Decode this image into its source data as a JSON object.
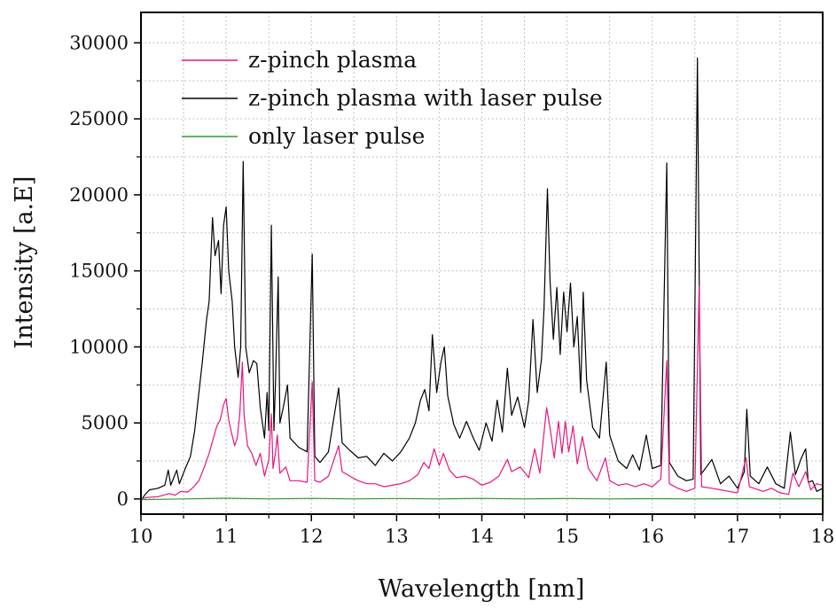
{
  "chart_data": {
    "type": "line",
    "title": "",
    "xlabel": "Wavelength [nm]",
    "ylabel": "Intensity [a.E]",
    "xlim": [
      10,
      18
    ],
    "ylim": [
      -1000,
      32000
    ],
    "x_ticks": [
      10,
      11,
      12,
      13,
      14,
      15,
      16,
      17,
      18
    ],
    "y_ticks": [
      0,
      5000,
      10000,
      15000,
      20000,
      25000,
      30000
    ],
    "grid": true,
    "legend_position": "top-left",
    "series": [
      {
        "name": "z-pinch plasma",
        "color": "#e8157f",
        "points": [
          [
            10.0,
            0
          ],
          [
            10.08,
            100
          ],
          [
            10.2,
            150
          ],
          [
            10.33,
            350
          ],
          [
            10.4,
            250
          ],
          [
            10.47,
            500
          ],
          [
            10.55,
            450
          ],
          [
            10.62,
            800
          ],
          [
            10.68,
            1200
          ],
          [
            10.75,
            2200
          ],
          [
            10.8,
            3000
          ],
          [
            10.85,
            4000
          ],
          [
            10.89,
            4800
          ],
          [
            10.93,
            5200
          ],
          [
            10.97,
            6200
          ],
          [
            11.0,
            6600
          ],
          [
            11.03,
            5200
          ],
          [
            11.06,
            4400
          ],
          [
            11.1,
            3500
          ],
          [
            11.13,
            4000
          ],
          [
            11.16,
            5600
          ],
          [
            11.19,
            9000
          ],
          [
            11.21,
            5500
          ],
          [
            11.25,
            3500
          ],
          [
            11.3,
            3000
          ],
          [
            11.35,
            2200
          ],
          [
            11.4,
            3000
          ],
          [
            11.45,
            1500
          ],
          [
            11.5,
            2600
          ],
          [
            11.53,
            5600
          ],
          [
            11.55,
            2000
          ],
          [
            11.58,
            3100
          ],
          [
            11.6,
            4200
          ],
          [
            11.63,
            1700
          ],
          [
            11.7,
            2100
          ],
          [
            11.75,
            1200
          ],
          [
            11.85,
            1200
          ],
          [
            11.95,
            1100
          ],
          [
            12.01,
            7700
          ],
          [
            12.04,
            1200
          ],
          [
            12.1,
            1100
          ],
          [
            12.2,
            1500
          ],
          [
            12.32,
            3500
          ],
          [
            12.36,
            1800
          ],
          [
            12.45,
            1500
          ],
          [
            12.55,
            1200
          ],
          [
            12.65,
            1000
          ],
          [
            12.75,
            1000
          ],
          [
            12.85,
            800
          ],
          [
            12.95,
            900
          ],
          [
            13.05,
            1000
          ],
          [
            13.15,
            1200
          ],
          [
            13.25,
            1600
          ],
          [
            13.32,
            2400
          ],
          [
            13.38,
            2000
          ],
          [
            13.44,
            3300
          ],
          [
            13.5,
            2200
          ],
          [
            13.55,
            3000
          ],
          [
            13.62,
            1900
          ],
          [
            13.7,
            1400
          ],
          [
            13.8,
            1500
          ],
          [
            13.9,
            1300
          ],
          [
            14.0,
            900
          ],
          [
            14.1,
            1100
          ],
          [
            14.2,
            1500
          ],
          [
            14.3,
            2600
          ],
          [
            14.35,
            1800
          ],
          [
            14.45,
            2100
          ],
          [
            14.55,
            1400
          ],
          [
            14.62,
            3300
          ],
          [
            14.68,
            1700
          ],
          [
            14.76,
            6000
          ],
          [
            14.8,
            4700
          ],
          [
            14.85,
            2700
          ],
          [
            14.9,
            5100
          ],
          [
            14.94,
            3000
          ],
          [
            14.98,
            5100
          ],
          [
            15.02,
            3100
          ],
          [
            15.07,
            4800
          ],
          [
            15.12,
            2300
          ],
          [
            15.18,
            4100
          ],
          [
            15.25,
            2000
          ],
          [
            15.35,
            1200
          ],
          [
            15.45,
            2700
          ],
          [
            15.5,
            1200
          ],
          [
            15.6,
            900
          ],
          [
            15.7,
            1000
          ],
          [
            15.8,
            800
          ],
          [
            15.9,
            1000
          ],
          [
            16.0,
            800
          ],
          [
            16.1,
            1300
          ],
          [
            16.17,
            9100
          ],
          [
            16.2,
            1000
          ],
          [
            16.3,
            700
          ],
          [
            16.4,
            500
          ],
          [
            16.5,
            700
          ],
          [
            16.55,
            14000
          ],
          [
            16.58,
            800
          ],
          [
            16.7,
            700
          ],
          [
            16.8,
            600
          ],
          [
            16.9,
            500
          ],
          [
            17.0,
            400
          ],
          [
            17.1,
            2700
          ],
          [
            17.14,
            800
          ],
          [
            17.3,
            500
          ],
          [
            17.4,
            700
          ],
          [
            17.5,
            400
          ],
          [
            17.6,
            300
          ],
          [
            17.65,
            1700
          ],
          [
            17.72,
            800
          ],
          [
            17.8,
            1800
          ],
          [
            17.86,
            600
          ],
          [
            17.93,
            1000
          ],
          [
            18.0,
            900
          ]
        ]
      },
      {
        "name": "z-pinch plasma with laser pulse",
        "color": "#000000",
        "points": [
          [
            10.0,
            -100
          ],
          [
            10.05,
            300
          ],
          [
            10.1,
            600
          ],
          [
            10.2,
            700
          ],
          [
            10.28,
            900
          ],
          [
            10.32,
            1900
          ],
          [
            10.35,
            900
          ],
          [
            10.42,
            1900
          ],
          [
            10.45,
            1000
          ],
          [
            10.52,
            2000
          ],
          [
            10.58,
            2800
          ],
          [
            10.63,
            4500
          ],
          [
            10.67,
            6500
          ],
          [
            10.72,
            9000
          ],
          [
            10.77,
            11800
          ],
          [
            10.8,
            13000
          ],
          [
            10.84,
            18500
          ],
          [
            10.87,
            16000
          ],
          [
            10.91,
            17000
          ],
          [
            10.94,
            13500
          ],
          [
            10.97,
            18000
          ],
          [
            11.0,
            19200
          ],
          [
            11.03,
            15000
          ],
          [
            11.07,
            13000
          ],
          [
            11.1,
            10000
          ],
          [
            11.14,
            8000
          ],
          [
            11.17,
            10000
          ],
          [
            11.2,
            22200
          ],
          [
            11.23,
            10000
          ],
          [
            11.27,
            8300
          ],
          [
            11.32,
            9100
          ],
          [
            11.36,
            8900
          ],
          [
            11.4,
            6000
          ],
          [
            11.45,
            4000
          ],
          [
            11.48,
            7000
          ],
          [
            11.5,
            4500
          ],
          [
            11.53,
            18000
          ],
          [
            11.56,
            4500
          ],
          [
            11.58,
            8000
          ],
          [
            11.61,
            14600
          ],
          [
            11.63,
            5000
          ],
          [
            11.67,
            6000
          ],
          [
            11.72,
            7500
          ],
          [
            11.75,
            4000
          ],
          [
            11.85,
            3400
          ],
          [
            11.95,
            3100
          ],
          [
            12.01,
            16100
          ],
          [
            12.04,
            2800
          ],
          [
            12.1,
            2400
          ],
          [
            12.2,
            3100
          ],
          [
            12.32,
            7300
          ],
          [
            12.36,
            3700
          ],
          [
            12.45,
            3200
          ],
          [
            12.55,
            2700
          ],
          [
            12.65,
            2800
          ],
          [
            12.75,
            2200
          ],
          [
            12.85,
            3000
          ],
          [
            12.95,
            2500
          ],
          [
            13.05,
            3100
          ],
          [
            13.15,
            4000
          ],
          [
            13.22,
            5000
          ],
          [
            13.28,
            6500
          ],
          [
            13.33,
            7200
          ],
          [
            13.38,
            5800
          ],
          [
            13.42,
            10800
          ],
          [
            13.47,
            7000
          ],
          [
            13.52,
            9000
          ],
          [
            13.56,
            10000
          ],
          [
            13.6,
            6800
          ],
          [
            13.67,
            4900
          ],
          [
            13.74,
            4000
          ],
          [
            13.82,
            5100
          ],
          [
            13.9,
            4000
          ],
          [
            13.97,
            3200
          ],
          [
            14.05,
            5000
          ],
          [
            14.12,
            3800
          ],
          [
            14.18,
            6500
          ],
          [
            14.24,
            4400
          ],
          [
            14.3,
            8600
          ],
          [
            14.35,
            5500
          ],
          [
            14.42,
            6700
          ],
          [
            14.5,
            4700
          ],
          [
            14.55,
            6500
          ],
          [
            14.6,
            11800
          ],
          [
            14.65,
            7000
          ],
          [
            14.7,
            9200
          ],
          [
            14.73,
            12600
          ],
          [
            14.77,
            20400
          ],
          [
            14.8,
            14400
          ],
          [
            14.84,
            10500
          ],
          [
            14.88,
            13900
          ],
          [
            14.92,
            9500
          ],
          [
            14.96,
            13600
          ],
          [
            15.0,
            11000
          ],
          [
            15.04,
            14200
          ],
          [
            15.08,
            10000
          ],
          [
            15.12,
            12000
          ],
          [
            15.16,
            7000
          ],
          [
            15.19,
            13600
          ],
          [
            15.23,
            7800
          ],
          [
            15.3,
            4700
          ],
          [
            15.38,
            4000
          ],
          [
            15.46,
            9000
          ],
          [
            15.5,
            4200
          ],
          [
            15.6,
            2500
          ],
          [
            15.7,
            2000
          ],
          [
            15.77,
            2900
          ],
          [
            15.85,
            1900
          ],
          [
            15.93,
            4200
          ],
          [
            16.0,
            2000
          ],
          [
            16.1,
            2200
          ],
          [
            16.17,
            22100
          ],
          [
            16.2,
            2400
          ],
          [
            16.3,
            1500
          ],
          [
            16.4,
            1200
          ],
          [
            16.48,
            1300
          ],
          [
            16.53,
            29000
          ],
          [
            16.57,
            1600
          ],
          [
            16.7,
            2600
          ],
          [
            16.8,
            1000
          ],
          [
            16.9,
            1500
          ],
          [
            17.0,
            700
          ],
          [
            17.08,
            1800
          ],
          [
            17.11,
            5900
          ],
          [
            17.15,
            1500
          ],
          [
            17.25,
            1000
          ],
          [
            17.35,
            2100
          ],
          [
            17.45,
            1000
          ],
          [
            17.55,
            700
          ],
          [
            17.62,
            4400
          ],
          [
            17.68,
            1600
          ],
          [
            17.75,
            2700
          ],
          [
            17.8,
            3300
          ],
          [
            17.83,
            1100
          ],
          [
            17.88,
            1200
          ],
          [
            17.93,
            500
          ],
          [
            18.0,
            700
          ]
        ]
      },
      {
        "name": "only laser pulse",
        "color": "#2e9e2e",
        "points": [
          [
            10.0,
            -50
          ],
          [
            10.5,
            0
          ],
          [
            11.0,
            50
          ],
          [
            11.5,
            0
          ],
          [
            12.0,
            40
          ],
          [
            12.5,
            0
          ],
          [
            13.0,
            30
          ],
          [
            13.5,
            0
          ],
          [
            14.0,
            40
          ],
          [
            14.5,
            0
          ],
          [
            15.0,
            30
          ],
          [
            15.5,
            0
          ],
          [
            16.0,
            20
          ],
          [
            16.5,
            0
          ],
          [
            17.0,
            20
          ],
          [
            17.5,
            0
          ],
          [
            18.0,
            10
          ]
        ]
      }
    ]
  }
}
